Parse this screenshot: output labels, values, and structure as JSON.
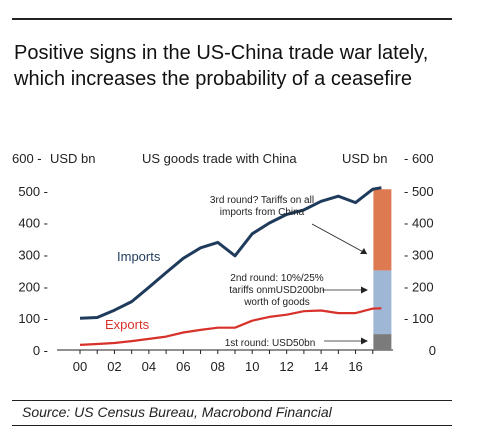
{
  "title": "Positive signs in the US-China trade war lately, which increases the probability of a ceasefire",
  "source": "Source: US Census Bureau, Macrobond Financial",
  "colors": {
    "imports": "#1f3b5c",
    "exports": "#d7312a",
    "bar_top": "#de7a52",
    "bar_mid": "#9db7d5",
    "bar_bottom": "#7b7b7b",
    "grid": "#222222"
  },
  "chart_data": {
    "type": "line",
    "left_axis_unit": "USD bn",
    "right_axis_unit": "USD bn",
    "center_heading": "US goods trade with China",
    "ylim": [
      0,
      600
    ],
    "yticks": [
      0,
      100,
      200,
      300,
      400,
      500,
      600
    ],
    "right_ticks": [
      0,
      100,
      200,
      300,
      400,
      500,
      600
    ],
    "xlim": [
      2000,
      2018
    ],
    "x_tick_labels": [
      "00",
      "02",
      "04",
      "06",
      "08",
      "10",
      "12",
      "14",
      "16"
    ],
    "x_tick_years": [
      2000,
      2002,
      2004,
      2006,
      2008,
      2010,
      2012,
      2014,
      2016
    ],
    "series": [
      {
        "name": "Imports",
        "x": [
          2000,
          2001,
          2002,
          2003,
          2004,
          2005,
          2006,
          2007,
          2008,
          2009,
          2010,
          2011,
          2012,
          2013,
          2014,
          2015,
          2016,
          2017,
          2017.5
        ],
        "y": [
          100,
          102,
          125,
          152,
          197,
          243,
          288,
          321,
          338,
          296,
          365,
          399,
          426,
          440,
          467,
          483,
          463,
          505,
          510
        ]
      },
      {
        "name": "Exports",
        "x": [
          2000,
          2001,
          2002,
          2003,
          2004,
          2005,
          2006,
          2007,
          2008,
          2009,
          2010,
          2011,
          2012,
          2013,
          2014,
          2015,
          2016,
          2017,
          2017.5
        ],
        "y": [
          16,
          19,
          22,
          28,
          35,
          42,
          55,
          63,
          70,
          70,
          92,
          104,
          111,
          122,
          124,
          116,
          116,
          130,
          131
        ]
      }
    ],
    "tariff_bar": {
      "x": 2017.5,
      "segments": [
        {
          "from": 0,
          "to": 50
        },
        {
          "from": 50,
          "to": 250
        },
        {
          "from": 250,
          "to": 505
        }
      ]
    },
    "annotations": [
      {
        "lines": [
          "3rd round? Tariffs on all",
          "imports from China"
        ]
      },
      {
        "lines": [
          "2nd round: 10%/25%",
          "tariffs onmUSD200bn",
          "worth of goods"
        ]
      },
      {
        "lines": [
          "1st round: USD50bn"
        ]
      }
    ]
  }
}
